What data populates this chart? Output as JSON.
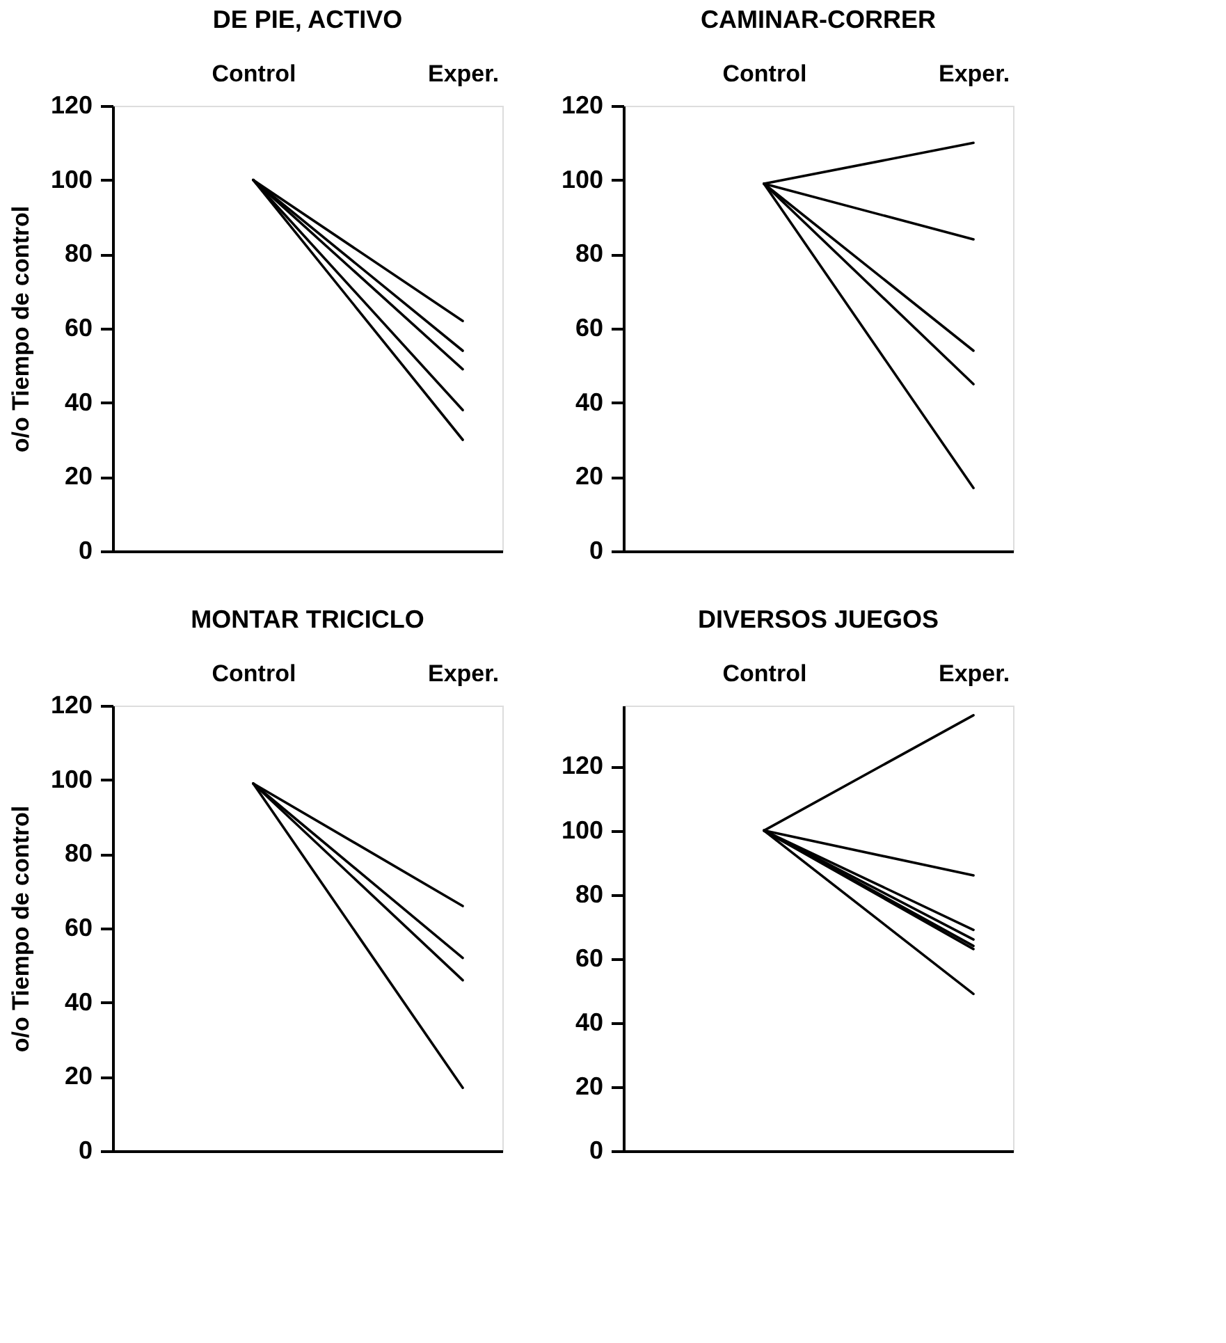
{
  "chart_data": [
    {
      "type": "line",
      "title": "DE PIE, ACTIVO",
      "ylabel": "o/o Tiempo de control",
      "categories": [
        "Control",
        "Exper."
      ],
      "ylim": [
        0,
        120
      ],
      "yticks": [
        0,
        20,
        40,
        60,
        80,
        100,
        120
      ],
      "grid": false,
      "legend": false,
      "marker": "none",
      "line_style": "solid",
      "series": [
        {
          "color": "#000000",
          "values": [
            100,
            62
          ]
        },
        {
          "color": "#000000",
          "values": [
            100,
            54
          ]
        },
        {
          "color": "#000000",
          "values": [
            100,
            49
          ]
        },
        {
          "color": "#000000",
          "values": [
            100,
            38
          ]
        },
        {
          "color": "#000000",
          "values": [
            100,
            30
          ]
        }
      ]
    },
    {
      "type": "line",
      "title": "CAMINAR-CORRER",
      "categories": [
        "Control",
        "Exper."
      ],
      "ylim": [
        0,
        120
      ],
      "yticks": [
        0,
        20,
        40,
        60,
        80,
        100,
        120
      ],
      "grid": false,
      "legend": false,
      "marker": "none",
      "line_style": "solid",
      "series": [
        {
          "color": "#000000",
          "values": [
            99,
            110
          ]
        },
        {
          "color": "#000000",
          "values": [
            99,
            84
          ]
        },
        {
          "color": "#000000",
          "values": [
            99,
            54
          ]
        },
        {
          "color": "#000000",
          "values": [
            99,
            45
          ]
        },
        {
          "color": "#000000",
          "values": [
            99,
            17
          ]
        }
      ]
    },
    {
      "type": "line",
      "title": "MONTAR TRICICLO",
      "ylabel": "o/o Tiempo de control",
      "categories": [
        "Control",
        "Exper."
      ],
      "ylim": [
        0,
        120
      ],
      "yticks": [
        0,
        20,
        40,
        60,
        80,
        100,
        120
      ],
      "grid": false,
      "legend": false,
      "marker": "none",
      "line_style": "solid",
      "series": [
        {
          "color": "#000000",
          "values": [
            99,
            66
          ]
        },
        {
          "color": "#000000",
          "values": [
            99,
            52
          ]
        },
        {
          "color": "#000000",
          "values": [
            99,
            46
          ]
        },
        {
          "color": "#000000",
          "values": [
            99,
            17
          ]
        }
      ]
    },
    {
      "type": "line",
      "title": "DIVERSOS JUEGOS",
      "categories": [
        "Control",
        "Exper."
      ],
      "ylim": [
        0,
        139
      ],
      "yticks": [
        0,
        20,
        40,
        60,
        80,
        100,
        120
      ],
      "grid": false,
      "legend": false,
      "marker": "none",
      "line_style": "solid",
      "series": [
        {
          "color": "#000000",
          "values": [
            100,
            136
          ]
        },
        {
          "color": "#000000",
          "values": [
            100,
            86
          ]
        },
        {
          "color": "#000000",
          "values": [
            100,
            69
          ]
        },
        {
          "color": "#000000",
          "values": [
            100,
            66
          ]
        },
        {
          "color": "#000000",
          "values": [
            100,
            64
          ]
        },
        {
          "color": "#000000",
          "values": [
            100,
            63
          ]
        },
        {
          "color": "#000000",
          "values": [
            100,
            49
          ]
        }
      ]
    }
  ]
}
